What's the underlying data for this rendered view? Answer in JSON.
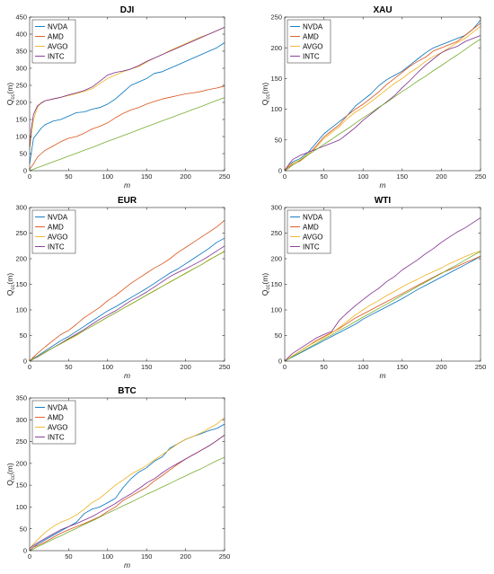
{
  "chart_data": [
    {
      "type": "line",
      "title": "DJI",
      "xlabel": "m",
      "ylabel": "Q",
      "ylabel_sub": "cc",
      "ylabel_arg": "(m)",
      "xlim": [
        0,
        250
      ],
      "ylim": [
        0,
        450
      ],
      "xticks": [
        0,
        50,
        100,
        150,
        200,
        250
      ],
      "yticks": [
        0,
        50,
        100,
        150,
        200,
        250,
        300,
        350,
        400,
        450
      ],
      "grid": false,
      "legend": "top-left",
      "x": [
        0,
        2,
        5,
        10,
        15,
        20,
        30,
        40,
        50,
        60,
        70,
        80,
        90,
        100,
        110,
        120,
        130,
        140,
        150,
        160,
        170,
        180,
        190,
        200,
        210,
        220,
        230,
        240,
        250
      ],
      "series": [
        {
          "name": "NVDA",
          "color": "#0072BD",
          "values": [
            20,
            50,
            95,
            110,
            125,
            135,
            145,
            150,
            160,
            170,
            172,
            180,
            185,
            195,
            210,
            230,
            250,
            260,
            270,
            285,
            290,
            300,
            310,
            320,
            330,
            340,
            350,
            360,
            375
          ]
        },
        {
          "name": "AMD",
          "color": "#D95319",
          "values": [
            5,
            10,
            20,
            40,
            50,
            60,
            72,
            85,
            95,
            100,
            110,
            122,
            130,
            140,
            155,
            168,
            178,
            185,
            195,
            203,
            210,
            215,
            220,
            225,
            228,
            232,
            238,
            242,
            248
          ]
        },
        {
          "name": "AVGO",
          "color": "#EDB120",
          "values": [
            60,
            100,
            150,
            185,
            200,
            205,
            210,
            215,
            220,
            226,
            232,
            240,
            255,
            270,
            280,
            290,
            298,
            305,
            318,
            330,
            340,
            352,
            362,
            372,
            382,
            392,
            400,
            410,
            420
          ]
        },
        {
          "name": "INTC",
          "color": "#7E2F8E",
          "values": [
            70,
            120,
            165,
            190,
            198,
            205,
            210,
            215,
            222,
            228,
            235,
            245,
            262,
            280,
            288,
            292,
            298,
            308,
            320,
            330,
            340,
            350,
            360,
            370,
            380,
            390,
            400,
            410,
            420
          ]
        },
        {
          "name": "",
          "color": "#77AC30",
          "values": [
            0,
            2,
            4,
            9,
            13,
            17,
            26,
            34,
            43,
            51,
            60,
            68,
            77,
            86,
            94,
            103,
            111,
            120,
            129,
            137,
            146,
            154,
            163,
            171,
            180,
            188,
            197,
            206,
            214
          ]
        }
      ]
    },
    {
      "type": "line",
      "title": "XAU",
      "xlabel": "m",
      "ylabel": "Q",
      "ylabel_sub": "cc",
      "ylabel_arg": "(m)",
      "xlim": [
        0,
        250
      ],
      "ylim": [
        0,
        250
      ],
      "xticks": [
        0,
        50,
        100,
        150,
        200,
        250
      ],
      "yticks": [
        0,
        50,
        100,
        150,
        200,
        250
      ],
      "grid": false,
      "legend": "top-left",
      "x": [
        0,
        5,
        10,
        20,
        30,
        40,
        50,
        60,
        70,
        80,
        90,
        100,
        110,
        120,
        130,
        140,
        150,
        160,
        170,
        180,
        190,
        200,
        210,
        220,
        230,
        240,
        250
      ],
      "series": [
        {
          "name": "NVDA",
          "color": "#0072BD",
          "values": [
            0,
            8,
            14,
            20,
            30,
            45,
            60,
            70,
            80,
            90,
            105,
            115,
            125,
            138,
            148,
            155,
            162,
            172,
            182,
            192,
            200,
            205,
            210,
            215,
            220,
            230,
            245
          ]
        },
        {
          "name": "AMD",
          "color": "#D95319",
          "values": [
            0,
            6,
            10,
            16,
            26,
            40,
            55,
            65,
            75,
            90,
            100,
            108,
            118,
            128,
            140,
            150,
            160,
            170,
            178,
            185,
            195,
            200,
            205,
            210,
            220,
            230,
            240
          ]
        },
        {
          "name": "AVGO",
          "color": "#EDB120",
          "values": [
            0,
            8,
            12,
            18,
            27,
            38,
            52,
            62,
            72,
            85,
            95,
            103,
            112,
            122,
            132,
            142,
            150,
            160,
            168,
            178,
            186,
            192,
            200,
            208,
            215,
            225,
            235
          ]
        },
        {
          "name": "INTC",
          "color": "#7E2F8E",
          "values": [
            0,
            10,
            18,
            25,
            30,
            35,
            40,
            45,
            50,
            60,
            70,
            82,
            92,
            102,
            112,
            122,
            135,
            147,
            160,
            172,
            182,
            192,
            198,
            202,
            210,
            215,
            220
          ]
        },
        {
          "name": "",
          "color": "#77AC30",
          "values": [
            0,
            4,
            9,
            17,
            26,
            34,
            43,
            51,
            60,
            68,
            77,
            86,
            94,
            103,
            111,
            120,
            129,
            137,
            146,
            154,
            163,
            171,
            180,
            188,
            197,
            206,
            214
          ]
        }
      ]
    },
    {
      "type": "line",
      "title": "EUR",
      "xlabel": "m",
      "ylabel": "Q",
      "ylabel_sub": "cc",
      "ylabel_arg": "(m)",
      "xlim": [
        0,
        250
      ],
      "ylim": [
        0,
        300
      ],
      "xticks": [
        0,
        50,
        100,
        150,
        200,
        250
      ],
      "yticks": [
        0,
        50,
        100,
        150,
        200,
        250,
        300
      ],
      "grid": false,
      "legend": "top-left",
      "x": [
        0,
        5,
        10,
        20,
        30,
        40,
        50,
        60,
        70,
        80,
        90,
        100,
        110,
        120,
        130,
        140,
        150,
        160,
        170,
        180,
        190,
        200,
        210,
        220,
        230,
        240,
        250
      ],
      "series": [
        {
          "name": "NVDA",
          "color": "#0072BD",
          "values": [
            0,
            6,
            10,
            20,
            30,
            40,
            48,
            58,
            68,
            78,
            88,
            98,
            106,
            115,
            124,
            133,
            142,
            152,
            162,
            172,
            180,
            190,
            200,
            210,
            220,
            232,
            240
          ]
        },
        {
          "name": "AMD",
          "color": "#D95319",
          "values": [
            0,
            8,
            15,
            28,
            40,
            52,
            60,
            72,
            85,
            95,
            105,
            118,
            128,
            140,
            152,
            162,
            172,
            182,
            190,
            200,
            212,
            222,
            232,
            242,
            252,
            262,
            275
          ]
        },
        {
          "name": "AVGO",
          "color": "#EDB120",
          "values": [
            0,
            5,
            9,
            18,
            26,
            34,
            42,
            50,
            60,
            68,
            77,
            86,
            94,
            103,
            112,
            120,
            129,
            138,
            146,
            155,
            163,
            172,
            180,
            188,
            198,
            206,
            215
          ]
        },
        {
          "name": "INTC",
          "color": "#7E2F8E",
          "values": [
            0,
            4,
            8,
            17,
            26,
            35,
            44,
            53,
            62,
            72,
            82,
            90,
            98,
            108,
            118,
            126,
            135,
            145,
            155,
            165,
            173,
            180,
            188,
            196,
            205,
            215,
            225
          ]
        },
        {
          "name": "",
          "color": "#77AC30",
          "values": [
            0,
            4,
            9,
            17,
            26,
            34,
            43,
            51,
            60,
            68,
            77,
            86,
            94,
            103,
            111,
            120,
            129,
            137,
            146,
            154,
            163,
            171,
            180,
            188,
            197,
            206,
            214
          ]
        }
      ]
    },
    {
      "type": "line",
      "title": "WTI",
      "xlabel": "m",
      "ylabel": "Q",
      "ylabel_sub": "cc",
      "ylabel_arg": "(m)",
      "xlim": [
        0,
        250
      ],
      "ylim": [
        0,
        300
      ],
      "xticks": [
        0,
        50,
        100,
        150,
        200,
        250
      ],
      "yticks": [
        0,
        50,
        100,
        150,
        200,
        250,
        300
      ],
      "grid": false,
      "legend": "top-left",
      "x": [
        0,
        5,
        10,
        20,
        30,
        40,
        50,
        60,
        70,
        80,
        90,
        100,
        110,
        120,
        130,
        140,
        150,
        160,
        170,
        180,
        190,
        200,
        210,
        220,
        230,
        240,
        250
      ],
      "series": [
        {
          "name": "NVDA",
          "color": "#0072BD",
          "values": [
            0,
            4,
            8,
            16,
            24,
            32,
            40,
            48,
            56,
            64,
            72,
            82,
            90,
            98,
            106,
            114,
            122,
            131,
            140,
            148,
            156,
            164,
            172,
            180,
            188,
            196,
            205
          ]
        },
        {
          "name": "AMD",
          "color": "#D95319",
          "values": [
            0,
            5,
            10,
            20,
            30,
            40,
            48,
            56,
            64,
            74,
            84,
            92,
            100,
            108,
            116,
            124,
            132,
            140,
            148,
            156,
            164,
            172,
            178,
            185,
            192,
            198,
            205
          ]
        },
        {
          "name": "AVGO",
          "color": "#EDB120",
          "values": [
            0,
            5,
            10,
            20,
            30,
            38,
            46,
            55,
            66,
            78,
            90,
            100,
            110,
            118,
            128,
            136,
            145,
            153,
            160,
            168,
            175,
            182,
            190,
            197,
            204,
            210,
            215
          ]
        },
        {
          "name": "INTC",
          "color": "#7E2F8E",
          "values": [
            0,
            8,
            15,
            25,
            35,
            45,
            52,
            58,
            80,
            95,
            108,
            120,
            132,
            142,
            155,
            165,
            178,
            188,
            198,
            210,
            220,
            232,
            242,
            252,
            260,
            270,
            280
          ]
        },
        {
          "name": "",
          "color": "#77AC30",
          "values": [
            0,
            4,
            9,
            17,
            26,
            34,
            43,
            51,
            60,
            68,
            77,
            86,
            94,
            103,
            111,
            120,
            129,
            137,
            146,
            154,
            163,
            171,
            180,
            188,
            197,
            206,
            214
          ]
        }
      ]
    },
    {
      "type": "line",
      "title": "BTC",
      "xlabel": "m",
      "ylabel": "Q",
      "ylabel_sub": "cc",
      "ylabel_arg": "(m)",
      "xlim": [
        0,
        250
      ],
      "ylim": [
        0,
        350
      ],
      "xticks": [
        0,
        50,
        100,
        150,
        200,
        250
      ],
      "yticks": [
        0,
        50,
        100,
        150,
        200,
        250,
        300,
        350
      ],
      "grid": false,
      "legend": "top-left",
      "x": [
        0,
        5,
        10,
        20,
        30,
        40,
        50,
        60,
        70,
        80,
        90,
        100,
        110,
        120,
        130,
        140,
        150,
        160,
        170,
        180,
        190,
        200,
        210,
        220,
        230,
        240,
        250
      ],
      "series": [
        {
          "name": "NVDA",
          "color": "#0072BD",
          "values": [
            0,
            8,
            15,
            25,
            35,
            45,
            55,
            65,
            85,
            95,
            100,
            110,
            120,
            145,
            165,
            180,
            190,
            205,
            215,
            235,
            245,
            255,
            262,
            268,
            275,
            280,
            290
          ]
        },
        {
          "name": "AMD",
          "color": "#D95319",
          "values": [
            0,
            8,
            12,
            20,
            30,
            40,
            48,
            55,
            62,
            70,
            78,
            90,
            100,
            115,
            125,
            135,
            145,
            160,
            172,
            185,
            198,
            210,
            220,
            230,
            240,
            252,
            265
          ]
        },
        {
          "name": "AVGO",
          "color": "#EDB120",
          "values": [
            5,
            15,
            25,
            42,
            55,
            65,
            72,
            82,
            95,
            110,
            120,
            135,
            150,
            162,
            175,
            185,
            195,
            208,
            220,
            232,
            245,
            255,
            262,
            270,
            280,
            290,
            305
          ]
        },
        {
          "name": "INTC",
          "color": "#7E2F8E",
          "values": [
            5,
            12,
            18,
            28,
            38,
            48,
            55,
            62,
            70,
            78,
            88,
            98,
            108,
            120,
            130,
            142,
            155,
            165,
            178,
            190,
            200,
            210,
            220,
            230,
            240,
            252,
            265
          ]
        },
        {
          "name": "",
          "color": "#77AC30",
          "values": [
            0,
            4,
            9,
            17,
            26,
            34,
            43,
            51,
            60,
            68,
            77,
            86,
            94,
            103,
            111,
            120,
            129,
            137,
            146,
            154,
            163,
            171,
            180,
            188,
            197,
            206,
            214
          ]
        }
      ]
    }
  ]
}
